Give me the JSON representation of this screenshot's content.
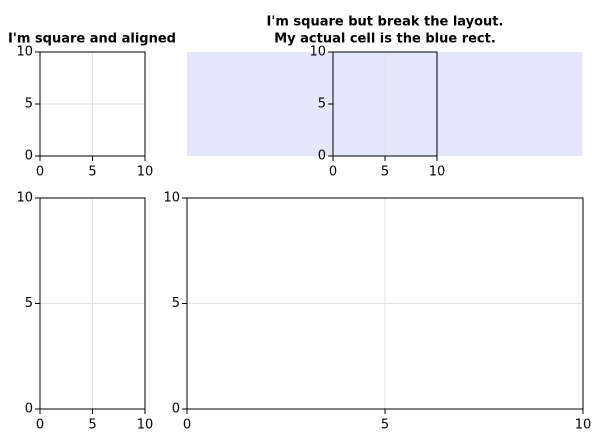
{
  "chart_data": [
    {
      "type": "line",
      "title": "I'm square and aligned",
      "xlim": [
        0,
        10
      ],
      "ylim": [
        0,
        10
      ],
      "xticks": [
        0,
        5,
        10
      ],
      "yticks": [
        0,
        5,
        10
      ],
      "grid": true
    },
    {
      "type": "line",
      "title": [
        "I'm square but break the layout.",
        "My actual cell is the blue rect."
      ],
      "cell_color": "#e6e6fa",
      "xlim": [
        0,
        10
      ],
      "ylim": [
        0,
        10
      ],
      "xticks": [
        0,
        5,
        10
      ],
      "yticks": [
        0,
        5,
        10
      ],
      "grid": true
    },
    {
      "type": "line",
      "xlim": [
        0,
        10
      ],
      "ylim": [
        0,
        10
      ],
      "xticks": [
        0,
        5,
        10
      ],
      "yticks": [
        0,
        5,
        10
      ],
      "grid": true
    },
    {
      "type": "line",
      "xlim": [
        0,
        10
      ],
      "ylim": [
        0,
        10
      ],
      "xticks": [
        0,
        5,
        10
      ],
      "yticks": [
        0,
        5,
        10
      ],
      "grid": true
    }
  ]
}
